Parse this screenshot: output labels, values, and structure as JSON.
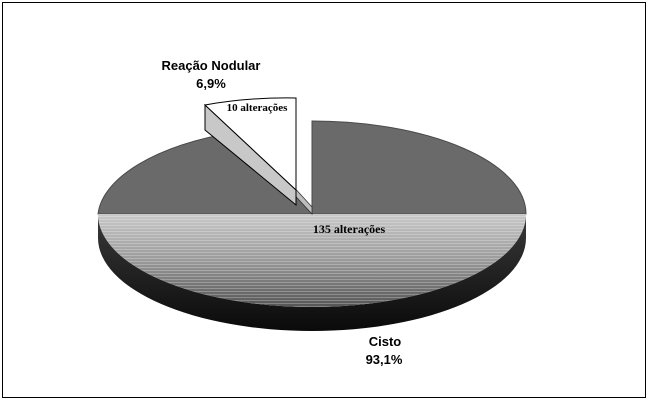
{
  "chart_data": {
    "type": "pie",
    "three_d": true,
    "exploded_slice": "Reação Nodular",
    "slices": [
      {
        "name": "Cisto",
        "percent_label": "93,1%",
        "count_label": "135 alterações",
        "value": 135,
        "percent": 93.1,
        "color": "#6a6a6a"
      },
      {
        "name": "Reação Nodular",
        "percent_label": "6,9%",
        "count_label": "10 alterações",
        "value": 10,
        "percent": 6.9,
        "color": "#ffffff"
      }
    ]
  }
}
